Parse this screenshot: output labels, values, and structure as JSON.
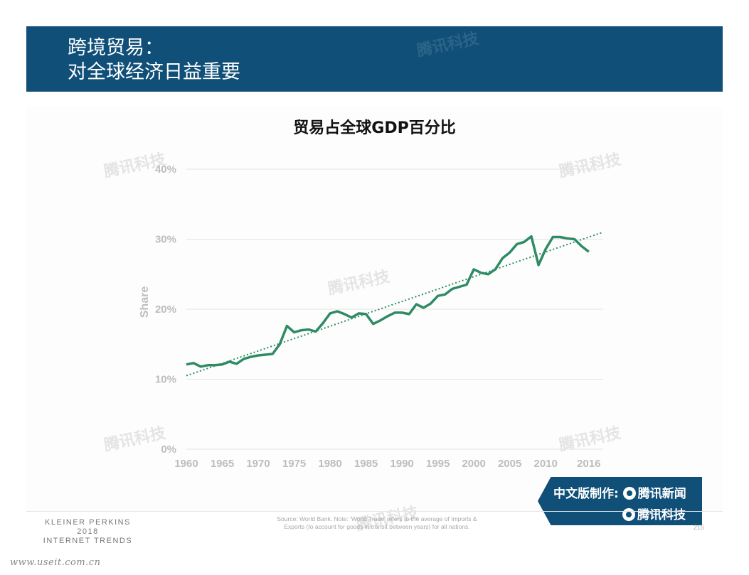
{
  "banner": {
    "title_line1": "跨境贸易：",
    "title_line2": "对全球经济日益重要"
  },
  "chart_data": {
    "type": "line",
    "title": "贸易占全球GDP百分比",
    "ylabel": "Share",
    "xlabel": "",
    "ylim": [
      0,
      40
    ],
    "xlim": [
      1960,
      2018
    ],
    "y_ticks": [
      {
        "value": 0,
        "label": "0%"
      },
      {
        "value": 10,
        "label": "10%"
      },
      {
        "value": 20,
        "label": "20%"
      },
      {
        "value": 30,
        "label": "30%"
      },
      {
        "value": 40,
        "label": "40%"
      }
    ],
    "x_ticks": [
      {
        "value": 1960,
        "label": "1960"
      },
      {
        "value": 1965,
        "label": "1965"
      },
      {
        "value": 1970,
        "label": "1970"
      },
      {
        "value": 1975,
        "label": "1975"
      },
      {
        "value": 1980,
        "label": "1980"
      },
      {
        "value": 1985,
        "label": "1985"
      },
      {
        "value": 1990,
        "label": "1990"
      },
      {
        "value": 1995,
        "label": "1995"
      },
      {
        "value": 2000,
        "label": "2000"
      },
      {
        "value": 2005,
        "label": "2005"
      },
      {
        "value": 2010,
        "label": "2010"
      },
      {
        "value": 2016,
        "label": "2016"
      }
    ],
    "grid": true,
    "series": [
      {
        "color": "#2e8b64",
        "x": [
          1960,
          1961,
          1962,
          1963,
          1964,
          1965,
          1966,
          1967,
          1968,
          1969,
          1970,
          1971,
          1972,
          1973,
          1974,
          1975,
          1976,
          1977,
          1978,
          1979,
          1980,
          1981,
          1982,
          1983,
          1984,
          1985,
          1986,
          1987,
          1988,
          1989,
          1990,
          1991,
          1992,
          1993,
          1994,
          1995,
          1996,
          1997,
          1998,
          1999,
          2000,
          2001,
          2002,
          2003,
          2004,
          2005,
          2006,
          2007,
          2008,
          2009,
          2010,
          2011,
          2012,
          2013,
          2014,
          2015,
          2016
        ],
        "values": [
          12.1,
          12.3,
          11.8,
          12.0,
          12.0,
          12.1,
          12.5,
          12.2,
          12.9,
          13.2,
          13.4,
          13.5,
          13.6,
          15.0,
          17.6,
          16.7,
          17.0,
          17.1,
          16.8,
          18.0,
          19.4,
          19.7,
          19.3,
          18.8,
          19.4,
          19.3,
          17.9,
          18.4,
          19.0,
          19.5,
          19.5,
          19.3,
          20.7,
          20.2,
          20.8,
          21.9,
          22.1,
          22.9,
          23.2,
          23.5,
          25.7,
          25.2,
          25.0,
          25.7,
          27.3,
          28.1,
          29.3,
          29.6,
          30.4,
          26.3,
          28.6,
          30.3,
          30.3,
          30.1,
          30.0,
          29.0,
          28.2
        ]
      },
      {
        "style": "dotted",
        "color": "#2e8b64",
        "x": [
          1960,
          2018
        ],
        "values": [
          10.5,
          31.0
        ]
      }
    ]
  },
  "watermarks": [
    "腾讯科技",
    "腾讯科技",
    "腾讯科技",
    "腾讯科技",
    "腾讯科技",
    "腾讯科技",
    "腾讯科技"
  ],
  "credit": {
    "line1_label": "中文版制作:",
    "line1_brand": "腾讯新闻",
    "line2_brand": "腾讯科技"
  },
  "source": {
    "line1": "Source: World Bank. Note: 'World Trade' refers to the average of Imports &",
    "line2": "Exports (to account for goods in transit between years) for all nations."
  },
  "footer": {
    "brand1": "KLEINER PERKINS",
    "brand2": "2018",
    "brand3": "INTERNET TRENDS",
    "page": "215",
    "url": "www.useit.com.cn"
  }
}
